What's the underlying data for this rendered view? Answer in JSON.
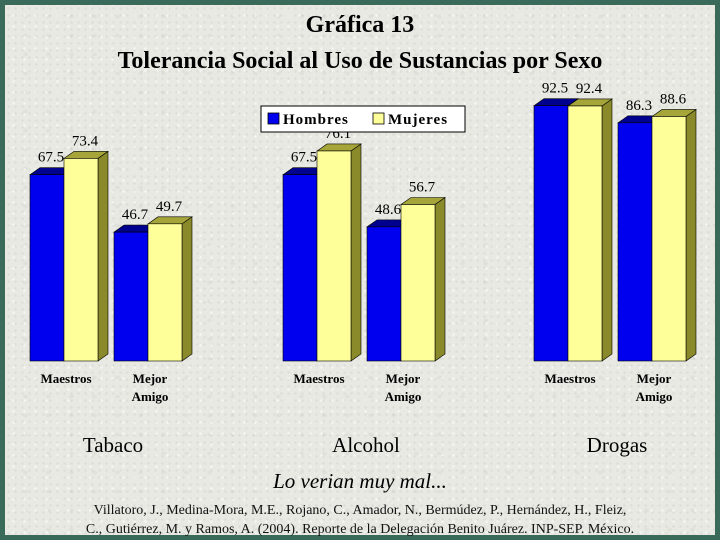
{
  "title_line1": "Gráfica 13",
  "title_line2": "Tolerancia Social al Uso de Sustancias por Sexo",
  "subtitle": "Lo verian muy mal...",
  "citation_line1": "Villatoro, J., Medina-Mora, M.E., Rojano, C., Amador, N., Bermúdez, P., Hernández, H., Fleiz,",
  "citation_line2": "C., Gutiérrez, M. y Ramos, A. (2004). Reporte de la Delegación Benito Juárez. INP-SEP. México.",
  "colors": {
    "hombres": "#0000ee",
    "mujeres": "#ffff99"
  },
  "chart_data": {
    "type": "bar",
    "legend": [
      "Hombres",
      "Mujeres"
    ],
    "legend_position": "top-center",
    "panels": [
      {
        "label": "Tabaco",
        "categories": [
          "Maestros",
          "Mejor Amigo"
        ],
        "series": [
          {
            "name": "Hombres",
            "values": [
              67.5,
              46.7
            ]
          },
          {
            "name": "Mujeres",
            "values": [
              73.4,
              49.7
            ]
          }
        ]
      },
      {
        "label": "Alcohol",
        "categories": [
          "Maestros",
          "Mejor Amigo"
        ],
        "series": [
          {
            "name": "Hombres",
            "values": [
              67.5,
              48.6
            ]
          },
          {
            "name": "Mujeres",
            "values": [
              76.1,
              56.7
            ]
          }
        ]
      },
      {
        "label": "Drogas",
        "categories": [
          "Maestros",
          "Mejor Amigo"
        ],
        "series": [
          {
            "name": "Hombres",
            "values": [
              92.5,
              86.3
            ]
          },
          {
            "name": "Mujeres",
            "values": [
              92.4,
              88.6
            ]
          }
        ]
      }
    ],
    "ylim": [
      0,
      100
    ],
    "grid": false
  }
}
